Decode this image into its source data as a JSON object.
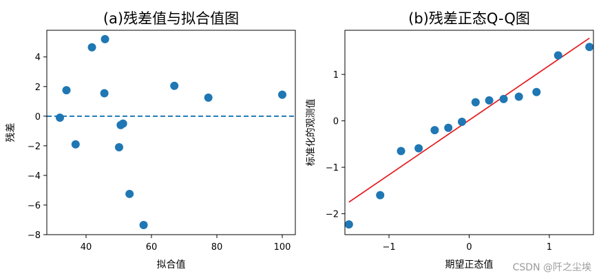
{
  "chart_data": [
    {
      "type": "scatter",
      "title": "(a)残差值与拟合值图",
      "xlabel": "拟合值",
      "ylabel": "残差",
      "xlim": [
        28,
        104
      ],
      "ylim": [
        -8,
        5.8
      ],
      "xticks": [
        40,
        60,
        80,
        100
      ],
      "xtick_labels": [
        "40",
        "60",
        "80",
        "100"
      ],
      "yticks": [
        -8,
        -6,
        -4,
        -2,
        0,
        2,
        4
      ],
      "ytick_labels": [
        "−8",
        "−6",
        "−4",
        "−2",
        "0",
        "2",
        "4"
      ],
      "grid": false,
      "point_color": "#1f77b4",
      "reference_line": {
        "y": 0,
        "style": "dashed",
        "color": "#1f77b4"
      },
      "points": [
        {
          "x": 32.0,
          "y": -0.1
        },
        {
          "x": 34.0,
          "y": 1.75
        },
        {
          "x": 36.8,
          "y": -1.9
        },
        {
          "x": 41.8,
          "y": 4.65
        },
        {
          "x": 45.6,
          "y": 1.55
        },
        {
          "x": 45.8,
          "y": 5.2
        },
        {
          "x": 50.1,
          "y": -2.1
        },
        {
          "x": 50.6,
          "y": -0.6
        },
        {
          "x": 51.3,
          "y": -0.5
        },
        {
          "x": 53.3,
          "y": -5.25
        },
        {
          "x": 57.6,
          "y": -7.35
        },
        {
          "x": 67.0,
          "y": 2.05
        },
        {
          "x": 77.4,
          "y": 1.25
        },
        {
          "x": 100.0,
          "y": 1.45
        }
      ]
    },
    {
      "type": "scatter",
      "title": "(b)残差正态Q-Q图",
      "xlabel": "期望正态值",
      "ylabel": "标准化的观测值",
      "xlim": [
        -1.55,
        1.55
      ],
      "ylim": [
        -2.45,
        1.95
      ],
      "xticks": [
        -1,
        0,
        1
      ],
      "xtick_labels": [
        "−1",
        "0",
        "1"
      ],
      "yticks": [
        -2,
        -1,
        0,
        1
      ],
      "ytick_labels": [
        "−2",
        "−1",
        "0",
        "1"
      ],
      "grid": false,
      "point_color": "#1f77b4",
      "reference_line": {
        "x": [
          -1.5,
          1.5
        ],
        "y": [
          -1.75,
          1.78
        ],
        "color": "#e41a1c"
      },
      "points": [
        {
          "x": -1.5,
          "y": -2.23
        },
        {
          "x": -1.11,
          "y": -1.6
        },
        {
          "x": -0.85,
          "y": -0.65
        },
        {
          "x": -0.63,
          "y": -0.59
        },
        {
          "x": -0.43,
          "y": -0.2
        },
        {
          "x": -0.26,
          "y": -0.15
        },
        {
          "x": -0.09,
          "y": -0.02
        },
        {
          "x": 0.08,
          "y": 0.4
        },
        {
          "x": 0.25,
          "y": 0.44
        },
        {
          "x": 0.43,
          "y": 0.47
        },
        {
          "x": 0.62,
          "y": 0.52
        },
        {
          "x": 0.84,
          "y": 0.62
        },
        {
          "x": 1.11,
          "y": 1.41
        },
        {
          "x": 1.5,
          "y": 1.59
        }
      ]
    }
  ],
  "watermark": "CSDN @阡之尘埃"
}
